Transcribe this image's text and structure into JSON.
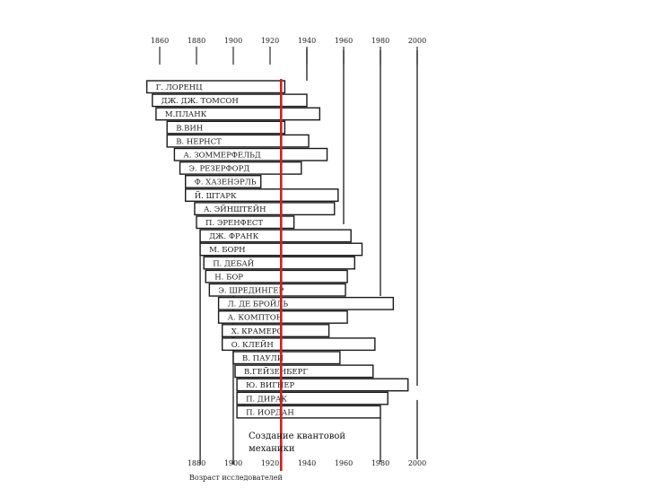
{
  "chart_data": {
    "type": "timeline",
    "top_axis_years": [
      "1860",
      "1880",
      "1900",
      "1920",
      "1940",
      "1960",
      "1980",
      "2000"
    ],
    "bottom_axis_years": [
      "1880",
      "1900",
      "1920",
      "1940",
      "1960",
      "1980",
      "2000"
    ],
    "bottom_axis_label": "Возраст исследователей",
    "caption": [
      "Создание квантовой",
      "механики"
    ],
    "highlight_year": 1926,
    "highlight_color": "#d21f1f",
    "scientists": [
      {
        "name": "Г. ЛОРЕНЦ",
        "start": 1853,
        "end": 1928
      },
      {
        "name": "ДЖ. ДЖ. ТОМСОН",
        "start": 1856,
        "end": 1940
      },
      {
        "name": "М.ПЛАНК",
        "start": 1858,
        "end": 1947
      },
      {
        "name": "В.ВИН",
        "start": 1864,
        "end": 1928
      },
      {
        "name": "В. НЕРНСТ",
        "start": 1864,
        "end": 1941
      },
      {
        "name": "А. ЗОММЕРФЕЛЬД",
        "start": 1868,
        "end": 1951
      },
      {
        "name": "Э. РЕЗЕРФОРД",
        "start": 1871,
        "end": 1937
      },
      {
        "name": "Ф. ХАЗЕНЭРЛЬ",
        "start": 1874,
        "end": 1915
      },
      {
        "name": "Й. ШТАРК",
        "start": 1874,
        "end": 1957
      },
      {
        "name": "А. ЭЙНШТЕЙН",
        "start": 1879,
        "end": 1955
      },
      {
        "name": "П. ЭРЕНФЕСТ",
        "start": 1880,
        "end": 1933
      },
      {
        "name": "ДЖ. ФРАНК",
        "start": 1882,
        "end": 1964
      },
      {
        "name": "М. БОРН",
        "start": 1882,
        "end": 1970
      },
      {
        "name": "П. ДЕБАЙ",
        "start": 1884,
        "end": 1966
      },
      {
        "name": "Н. БОР",
        "start": 1885,
        "end": 1962
      },
      {
        "name": "Э. ШРЕДИНГЕР",
        "start": 1887,
        "end": 1961
      },
      {
        "name": "Л. ДЕ БРОЙЛЬ",
        "start": 1892,
        "end": 1987
      },
      {
        "name": "А. КОМПТОН",
        "start": 1892,
        "end": 1962
      },
      {
        "name": "Х. КРАМЕРС",
        "start": 1894,
        "end": 1952
      },
      {
        "name": "О. КЛЕЙН",
        "start": 1894,
        "end": 1977
      },
      {
        "name": "В. ПАУЛИ",
        "start": 1900,
        "end": 1958
      },
      {
        "name": "В.ГЕЙЗЕНБЕРГ",
        "start": 1901,
        "end": 1976
      },
      {
        "name": "Ю. ВИГНЕР",
        "start": 1902,
        "end": 1995
      },
      {
        "name": "П. ДИРАК",
        "start": 1902,
        "end": 1984
      },
      {
        "name": "П. ИОРДАН",
        "start": 1902,
        "end": 1980
      }
    ]
  }
}
